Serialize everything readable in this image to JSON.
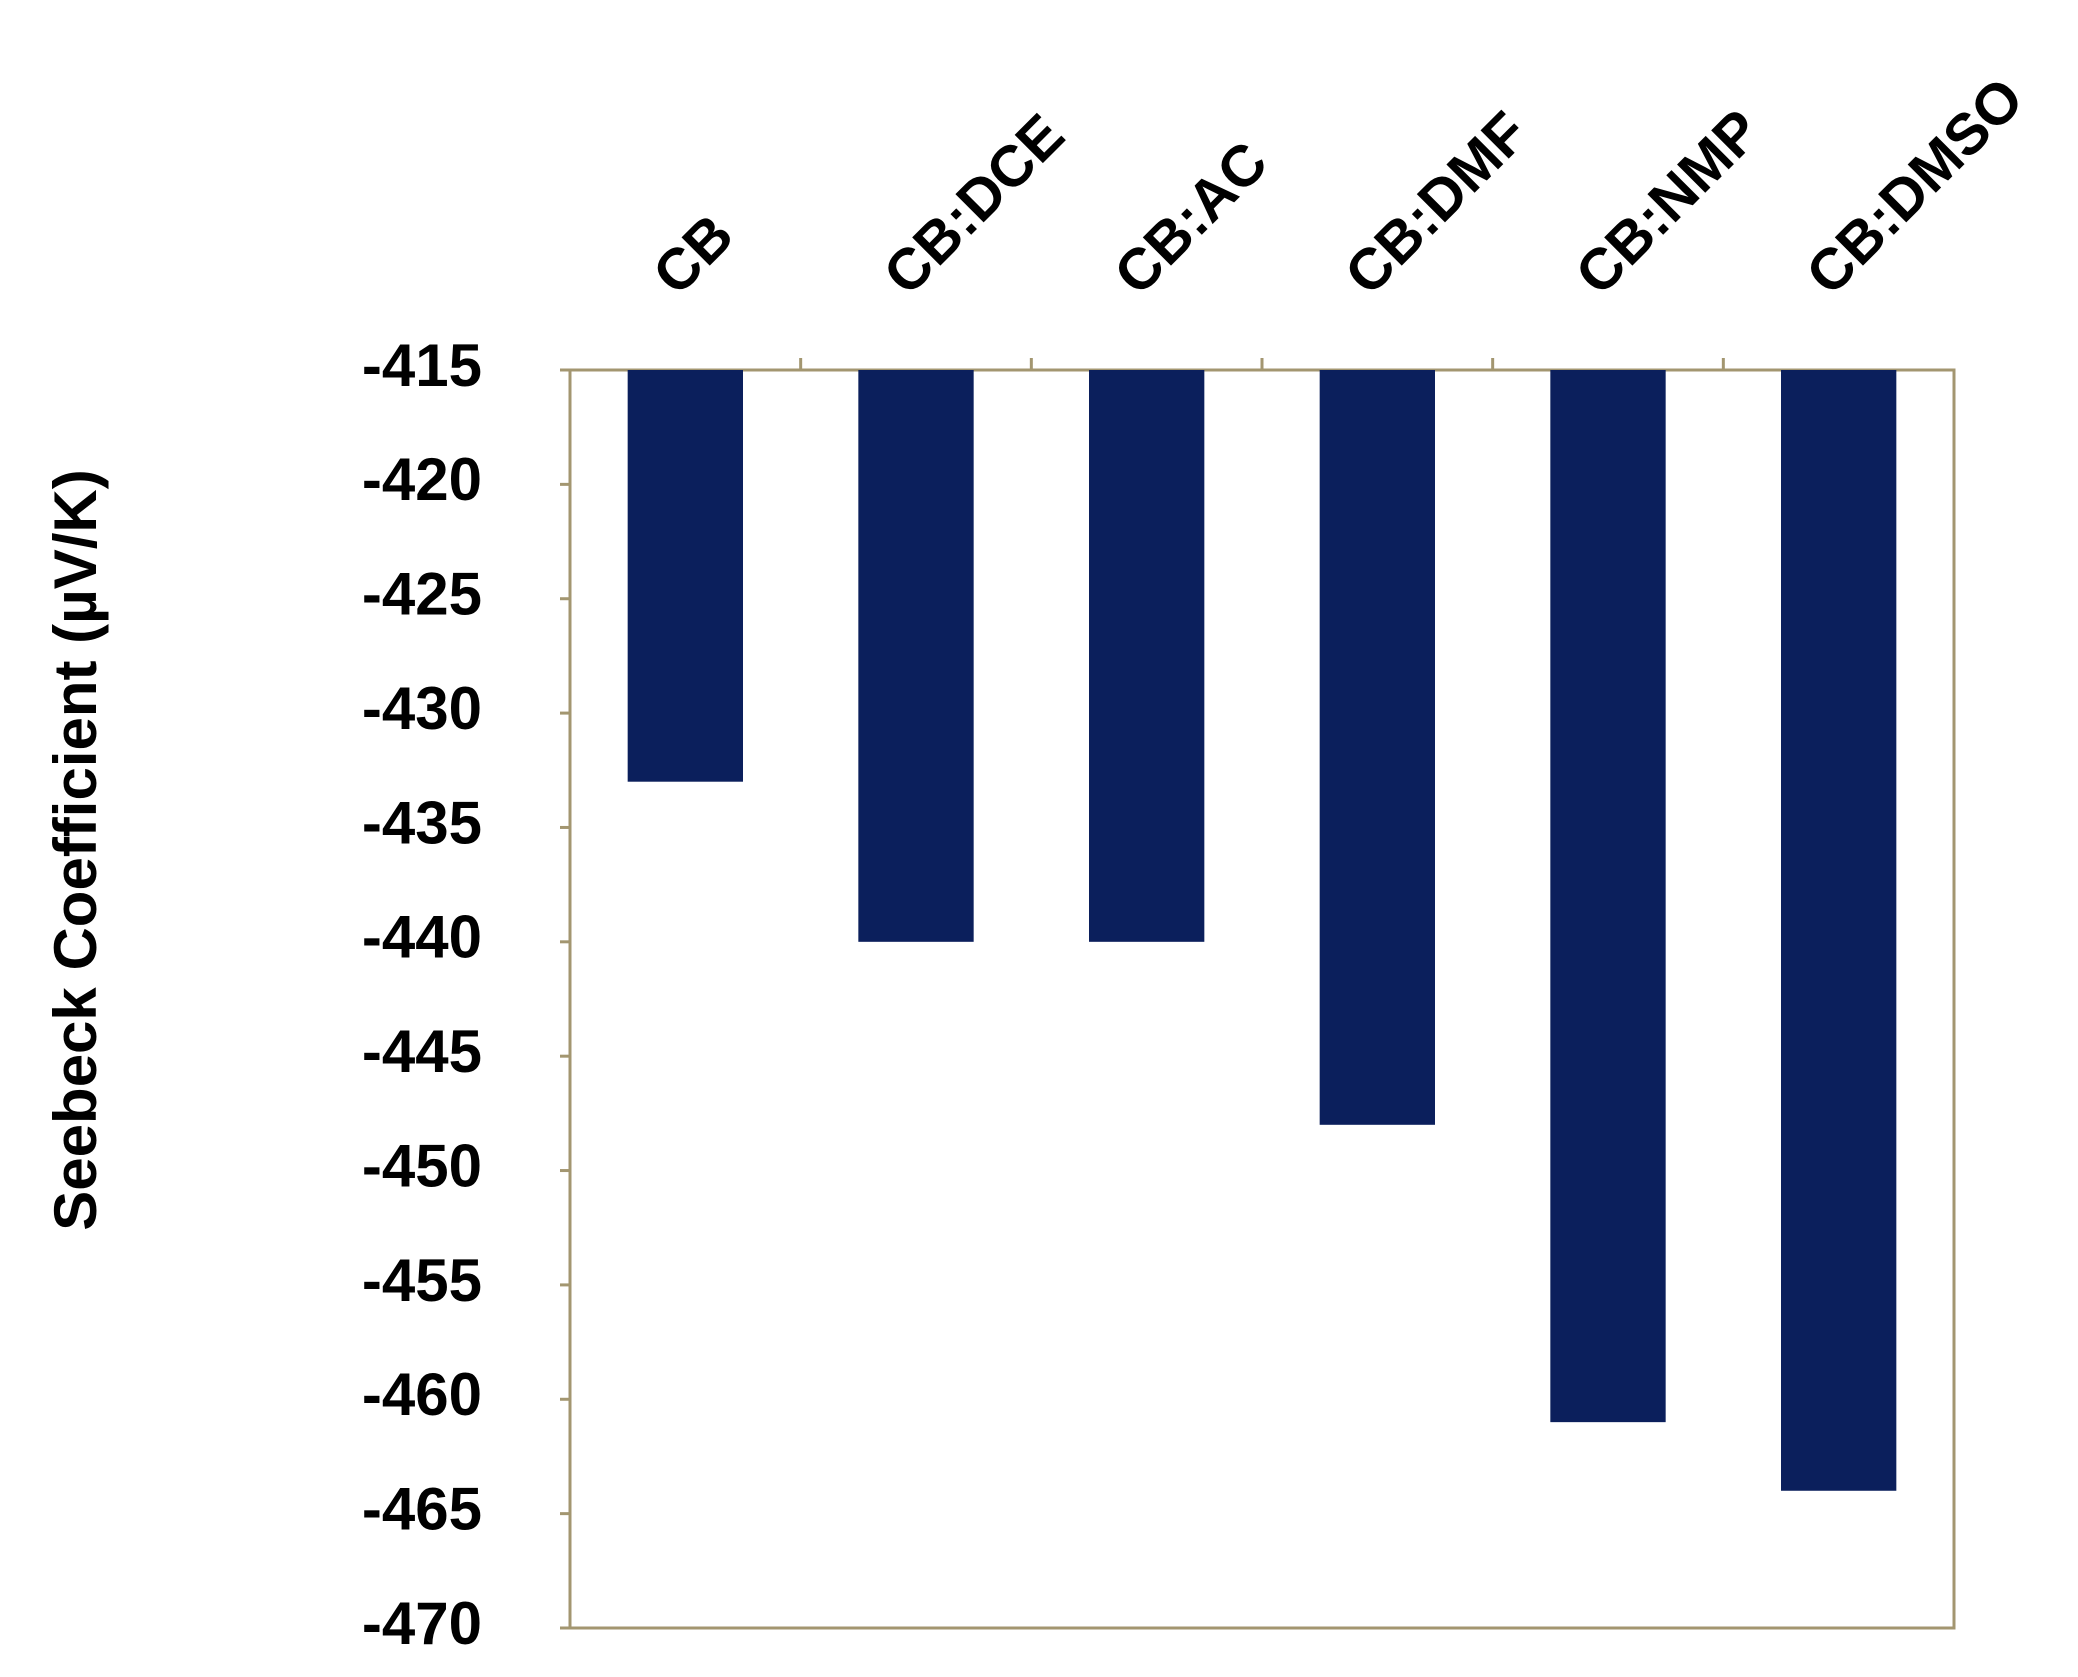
{
  "chart_data": {
    "type": "bar",
    "y_label": "Seebeck Coefficient (µV/K)",
    "categories": [
      "CB",
      "CB:DCE",
      "CB:AC",
      "CB:DMF",
      "CB:NMP",
      "CB:DMSO"
    ],
    "values": [
      -433,
      -440,
      -440,
      -448,
      -461,
      -464
    ],
    "color": "#0b1f5c",
    "ylim": [
      -470,
      -415
    ],
    "yticks": [
      -470,
      -465,
      -460,
      -455,
      -450,
      -445,
      -440,
      -435,
      -430,
      -425,
      -420,
      -415
    ],
    "grid": false
  }
}
